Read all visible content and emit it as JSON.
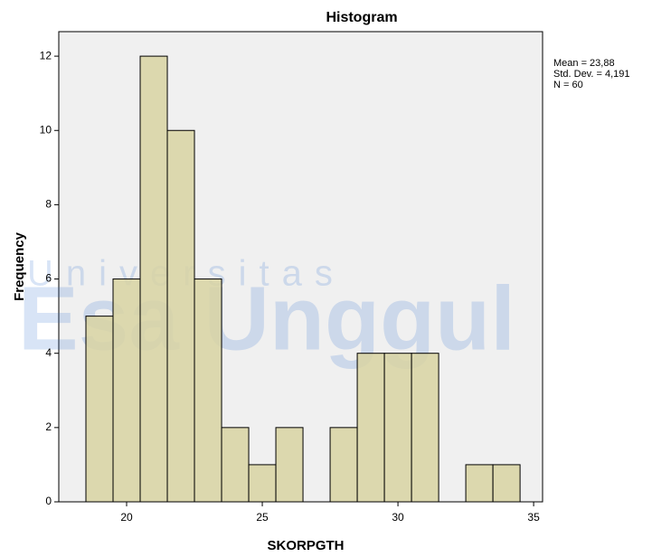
{
  "chart_data": {
    "type": "histogram",
    "title": "Histogram",
    "x_label": "SKORPGTH",
    "y_label": "Frequency",
    "bins": [
      18.5,
      19.5,
      20.5,
      21.5,
      22.5,
      23.5,
      24.5,
      25.5,
      26.5,
      27.5,
      28.5,
      29.5,
      30.5,
      31.5,
      32.5,
      33.5,
      34.5
    ],
    "values": [
      5,
      6,
      12,
      10,
      6,
      2,
      1,
      2,
      0,
      2,
      4,
      4,
      4,
      0,
      1,
      1
    ],
    "color": "#d8d3a2",
    "xlim": [
      17.5,
      35.33
    ],
    "xticks": [
      20,
      25,
      30,
      35
    ],
    "ylim": [
      0,
      12.66
    ],
    "yticks": [
      0,
      2,
      4,
      6,
      8,
      10,
      12
    ],
    "annotations": [
      "Mean = 23,88",
      "Std. Dev. = 4,191",
      "N = 60"
    ],
    "watermark": [
      "Universitas",
      "Esa Unggul"
    ]
  }
}
